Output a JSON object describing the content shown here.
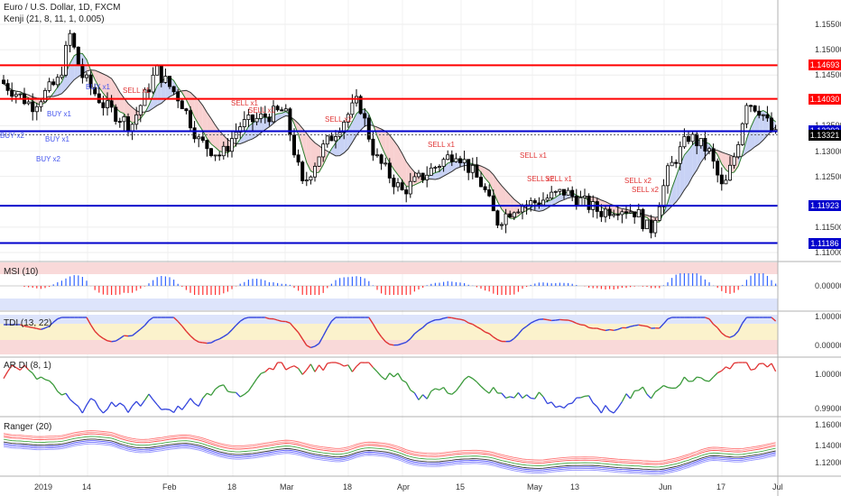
{
  "header": {
    "title": "Euro / U.S. Dollar, 1D, FXCM",
    "indicator": "Kenji (21, 8, 11, 1, 0.005)"
  },
  "panes": {
    "msi": "MSI (10)",
    "tdi": "TDI (13, 22)",
    "ardi": "AR DI (8, 1)",
    "ranger": "Ranger (20)"
  },
  "chart_data": {
    "type": "line",
    "title": "Euro / U.S. Dollar, 1D, FXCM",
    "main_axis_ticks": [
      "1.15500",
      "1.15000",
      "1.14500",
      "1.13500",
      "1.13000",
      "1.12500",
      "1.11500",
      "1.11000"
    ],
    "price_levels": [
      {
        "label": "1.14693",
        "value": 1.14693,
        "color": "#ff0000"
      },
      {
        "label": "1.14030",
        "value": 1.1403,
        "color": "#ff0000"
      },
      {
        "label": "1.13393",
        "value": 1.13393,
        "color": "#0000cc"
      },
      {
        "label": "1.13321",
        "value": 1.13321,
        "color": "#000000"
      },
      {
        "label": "1.11923",
        "value": 1.11923,
        "color": "#0000cc"
      },
      {
        "label": "1.11186",
        "value": 1.11186,
        "color": "#0000cc"
      }
    ],
    "x_labels": [
      "2019",
      "14",
      "Feb",
      "18",
      "Mar",
      "18",
      "Apr",
      "15",
      "May",
      "13",
      "Jun",
      "17",
      "Jul"
    ],
    "signals": [
      {
        "text": "BUY x1",
        "type": "buy"
      },
      {
        "text": "BUY x1",
        "type": "buy"
      },
      {
        "text": "BUY x2",
        "type": "buy"
      },
      {
        "text": "BUY x1",
        "type": "buy"
      },
      {
        "text": "BUY x2",
        "type": "buy"
      },
      {
        "text": "SELL x1",
        "type": "sell"
      },
      {
        "text": "SELL x1",
        "type": "sell"
      },
      {
        "text": "SELL x1",
        "type": "sell"
      },
      {
        "text": "SELL x2",
        "type": "sell"
      },
      {
        "text": "SELL x1",
        "type": "sell"
      },
      {
        "text": "SELL x1",
        "type": "sell"
      },
      {
        "text": "SELL x2",
        "type": "sell"
      },
      {
        "text": "SELL x1",
        "type": "sell"
      },
      {
        "text": "SELL x2",
        "type": "sell"
      },
      {
        "text": "SELL x2",
        "type": "sell"
      }
    ],
    "msi_ticks": [
      "0.00000"
    ],
    "tdi_ticks": [
      "1.00000",
      "0.00000"
    ],
    "ardi_ticks": [
      "1.00000",
      "0.99000"
    ],
    "ranger_ticks": [
      "1.16000",
      "1.14000",
      "1.12000"
    ],
    "colors": {
      "bull": "#000000",
      "bear": "#000000",
      "level_red": "#ff0000",
      "level_blue": "#0000cc",
      "msi_pos": "#3366ff",
      "msi_neg": "#ff3333"
    }
  }
}
